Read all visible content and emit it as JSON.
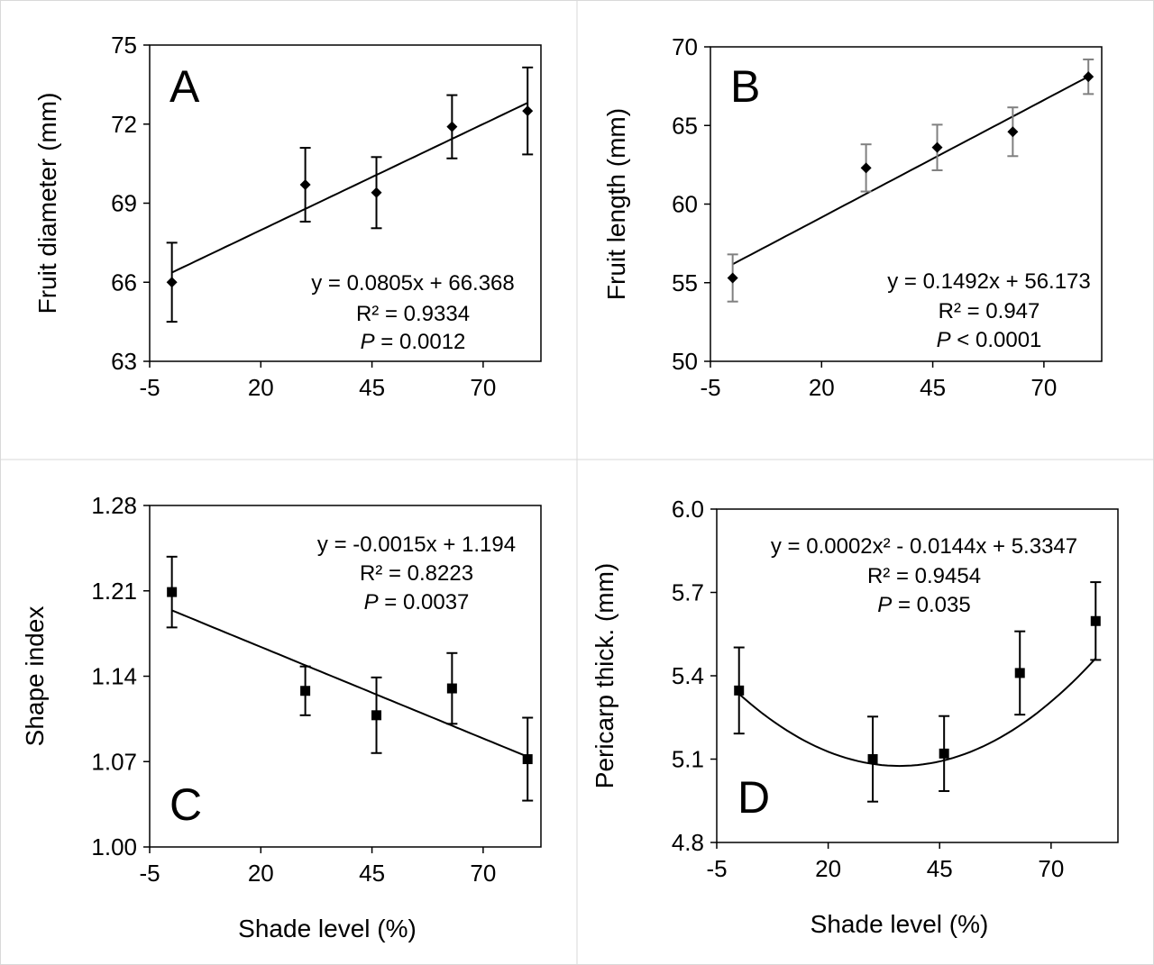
{
  "chart_data": [
    {
      "type": "scatter",
      "panel_label": "A",
      "xlabel": "",
      "ylabel": "Fruit diameter (mm)",
      "xlim": [
        -5,
        83
      ],
      "ylim": [
        63,
        75
      ],
      "xticks": [
        -5,
        20,
        45,
        70
      ],
      "yticks": [
        63,
        66,
        69,
        72,
        75
      ],
      "marker": "diamond",
      "error_bar_color": "#000000",
      "points": [
        {
          "x": 0,
          "y": 66.0,
          "err": 1.5
        },
        {
          "x": 30,
          "y": 69.7,
          "err": 1.4
        },
        {
          "x": 46,
          "y": 69.4,
          "err": 1.35
        },
        {
          "x": 63,
          "y": 71.9,
          "err": 1.2
        },
        {
          "x": 80,
          "y": 72.5,
          "err": 1.65
        }
      ],
      "fit": {
        "kind": "linear",
        "coef": [
          66.368,
          0.0805
        ]
      },
      "equation": "y = 0.0805x + 66.368",
      "r2": "R² = 0.9334",
      "p_symbol": "P",
      "p_text": " = 0.0012"
    },
    {
      "type": "scatter",
      "panel_label": "B",
      "xlabel": "",
      "ylabel": "Fruit length (mm)",
      "xlim": [
        -5,
        83
      ],
      "ylim": [
        50,
        70
      ],
      "xticks": [
        -5,
        20,
        45,
        70
      ],
      "yticks": [
        50,
        55,
        60,
        65,
        70
      ],
      "marker": "diamond",
      "error_bar_color": "#808080",
      "points": [
        {
          "x": 0,
          "y": 55.3,
          "err": 1.5
        },
        {
          "x": 30,
          "y": 62.3,
          "err": 1.5
        },
        {
          "x": 46,
          "y": 63.6,
          "err": 1.45
        },
        {
          "x": 63,
          "y": 64.6,
          "err": 1.55
        },
        {
          "x": 80,
          "y": 68.1,
          "err": 1.1
        }
      ],
      "fit": {
        "kind": "linear",
        "coef": [
          56.173,
          0.1492
        ]
      },
      "equation": "y = 0.1492x + 56.173",
      "r2": "R² = 0.947",
      "p_symbol": "P",
      "p_text": " < 0.0001"
    },
    {
      "type": "scatter",
      "panel_label": "C",
      "xlabel": "Shade level (%)",
      "ylabel": "Shape index",
      "xlim": [
        -5,
        83
      ],
      "ylim": [
        1.0,
        1.28
      ],
      "xticks": [
        -5,
        20,
        45,
        70
      ],
      "yticks": [
        1.0,
        1.07,
        1.14,
        1.21,
        1.28
      ],
      "ytick_decimals": 2,
      "marker": "square",
      "error_bar_color": "#000000",
      "points": [
        {
          "x": 0,
          "y": 1.209,
          "err": 0.029
        },
        {
          "x": 30,
          "y": 1.128,
          "err": 0.02
        },
        {
          "x": 46,
          "y": 1.108,
          "err": 0.031
        },
        {
          "x": 63,
          "y": 1.13,
          "err": 0.029
        },
        {
          "x": 80,
          "y": 1.072,
          "err": 0.034
        }
      ],
      "fit": {
        "kind": "linear",
        "coef": [
          1.194,
          -0.0015
        ]
      },
      "equation": "y = -0.0015x + 1.194",
      "r2": "R² = 0.8223",
      "p_symbol": "P",
      "p_text": " = 0.0037"
    },
    {
      "type": "scatter",
      "panel_label": "D",
      "xlabel": "Shade level (%)",
      "ylabel": "Pericarp thick. (mm)",
      "xlim": [
        -5,
        85
      ],
      "ylim": [
        4.8,
        6.0
      ],
      "xticks": [
        -5,
        20,
        45,
        70
      ],
      "yticks": [
        4.8,
        5.1,
        5.4,
        5.7,
        6.0
      ],
      "ytick_decimals": 1,
      "marker": "square",
      "error_bar_color": "#000000",
      "points": [
        {
          "x": 0,
          "y": 5.347,
          "err": 0.155
        },
        {
          "x": 30,
          "y": 5.1,
          "err": 0.153
        },
        {
          "x": 46,
          "y": 5.12,
          "err": 0.135
        },
        {
          "x": 63,
          "y": 5.41,
          "err": 0.15
        },
        {
          "x": 80,
          "y": 5.597,
          "err": 0.14
        }
      ],
      "fit": {
        "kind": "quadratic",
        "coef": [
          5.3347,
          -0.0144,
          0.0002
        ]
      },
      "equation": "y = 0.0002x² - 0.0144x + 5.3347",
      "r2": "R² = 0.9454",
      "p_symbol": "P",
      "p_text": " = 0.035"
    }
  ]
}
